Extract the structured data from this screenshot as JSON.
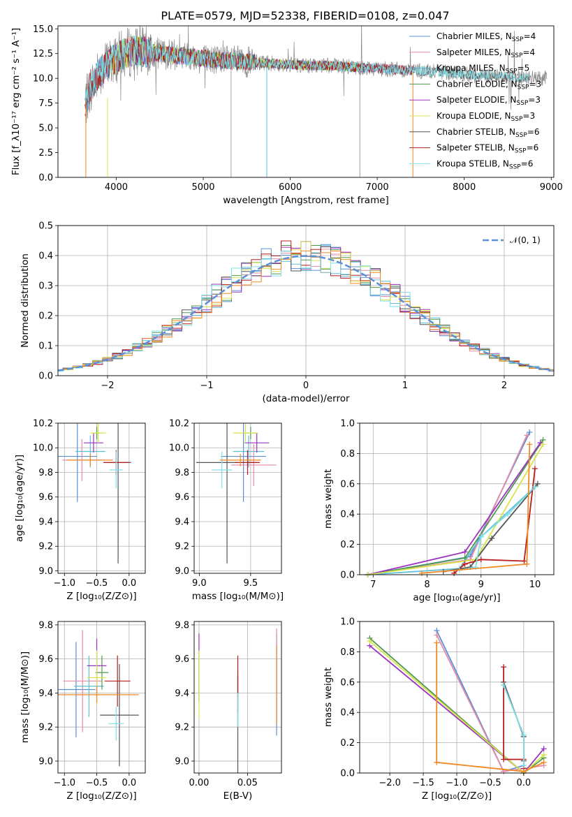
{
  "figure_title": "PLATE=0579, MJD=52338, FIBERID=0108, z=0.047",
  "colors": {
    "Chabrier MILES": "#5b8fd6",
    "Salpeter MILES": "#e58ba8",
    "Kroupa MILES": "#5bbdd8",
    "Chabrier ELODIE": "#4f9a4f",
    "Salpeter ELODIE": "#9b32c0",
    "Kroupa ELODIE": "#d8e34a",
    "Chabrier STELIB": "#555555",
    "Salpeter STELIB": "#b81c1c",
    "Kroupa STELIB": "#7fe0e8",
    "orange": "#f08a24",
    "normal_curve": "#5b8fd6"
  },
  "chart_data": [
    {
      "type": "line",
      "panel": "spectrum",
      "xlabel": "wavelength [Angstrom, rest frame]",
      "ylabel": "Flux [f_λ10⁻¹⁷ erg cm⁻² s⁻¹ A⁻¹]",
      "xlim": [
        3330,
        9030
      ],
      "ylim": [
        0,
        15.3
      ],
      "xticks": [
        "4000",
        "5000",
        "6000",
        "7000",
        "8000",
        "9000"
      ],
      "yticks": [
        "0.0",
        "2.5",
        "5.0",
        "7.5",
        "10.0",
        "12.5",
        "15.0"
      ],
      "legend": [
        "Chabrier MILES, Nₛₛₚ=4",
        "Salpeter MILES, Nₛₛₚ=4",
        "Kroupa MILES, Nₛₛₚ=5",
        "Chabrier ELODIE, Nₛₛₚ=3",
        "Salpeter ELODIE, Nₛₛₚ=3",
        "Kroupa ELODIE, Nₛₛₚ=3",
        "Chabrier STELIB, Nₛₛₚ=6",
        "Salpeter STELIB, Nₛₛₚ=6",
        "Kroupa STELIB, Nₛₛₚ=6"
      ],
      "legend_display": [
        {
          "name": "Chabrier MILES",
          "n": "4"
        },
        {
          "name": "Salpeter MILES",
          "n": "4"
        },
        {
          "name": "Kroupa MILES",
          "n": "5"
        },
        {
          "name": "Chabrier ELODIE",
          "n": "3"
        },
        {
          "name": "Salpeter ELODIE",
          "n": "3"
        },
        {
          "name": "Kroupa ELODIE",
          "n": "3"
        },
        {
          "name": "Chabrier STELIB",
          "n": "6"
        },
        {
          "name": "Salpeter STELIB",
          "n": "6"
        },
        {
          "name": "Kroupa STELIB",
          "n": "6"
        }
      ],
      "legend_placement": "upper-right",
      "grid": false,
      "continuum_x": [
        3650,
        3700,
        3800,
        3900,
        4000,
        4100,
        4200,
        4300,
        4400,
        4600,
        4800,
        5000,
        5200,
        5400,
        5600,
        5800,
        6000,
        6200,
        6400,
        6600,
        6800,
        7000,
        7200,
        7400,
        7600,
        7800,
        8000,
        8200,
        8400,
        8600,
        8800
      ],
      "continuum_y": [
        7.5,
        9.0,
        10.5,
        11.5,
        12.0,
        12.5,
        12.8,
        12.7,
        12.6,
        12.4,
        12.2,
        12.0,
        11.8,
        11.7,
        11.6,
        11.5,
        11.4,
        11.3,
        11.3,
        11.2,
        11.1,
        11.0,
        10.9,
        10.8,
        10.7,
        10.6,
        10.4,
        10.3,
        10.2,
        10.1,
        10.0
      ]
    },
    {
      "type": "bar",
      "panel": "residual histogram",
      "xlabel": "(data-model)/error",
      "ylabel": "Normed distribution",
      "xlim": [
        -2.5,
        2.5
      ],
      "ylim": [
        0,
        0.5
      ],
      "xticks": [
        "−2",
        "−1",
        "0",
        "1",
        "2"
      ],
      "yticks": [
        "0.0",
        "0.1",
        "0.2",
        "0.3",
        "0.4",
        "0.5"
      ],
      "legend": [
        "𝒩(0, 1)"
      ],
      "legend_display": [
        {
          "name": "𝒩(0, 1)",
          "n": ""
        }
      ],
      "legend_placement": "upper-right",
      "grid": true,
      "bin_width": 0.1,
      "note": "9 step histograms approximately following N(0,1)"
    },
    {
      "type": "scatter",
      "panel": "age vs Z",
      "xlabel": "Z [log₁₀(Z/Z⊙)]",
      "ylabel": "age  [log₁₀(age/yr)]",
      "xlim": [
        -1.1,
        0.25
      ],
      "ylim": [
        8.98,
        10.2
      ],
      "xticks": [
        "−1.0",
        "−0.5",
        "0.0"
      ],
      "yticks": [
        "9.0",
        "9.2",
        "9.4",
        "9.6",
        "9.8",
        "10.0",
        "10.2"
      ],
      "grid": true,
      "points": [
        {
          "x": -0.8,
          "xerr": 0.3,
          "y": 9.93,
          "yerr": 0.37,
          "c": "Chabrier MILES"
        },
        {
          "x": -0.73,
          "xerr": 0.3,
          "y": 9.9,
          "yerr": 0.17,
          "c": "Salpeter MILES"
        },
        {
          "x": -0.6,
          "xerr": 0.23,
          "y": 9.97,
          "yerr": 0.13,
          "c": "Kroupa MILES"
        },
        {
          "x": -0.5,
          "xerr": 0.07,
          "y": 10.12,
          "yerr": 0.05,
          "c": "Chabrier ELODIE"
        },
        {
          "x": -0.55,
          "xerr": 0.15,
          "y": 10.04,
          "yerr": 0.08,
          "c": "Salpeter ELODIE"
        },
        {
          "x": -0.48,
          "xerr": 0.12,
          "y": 10.12,
          "yerr": 0.08,
          "c": "Kroupa ELODIE"
        },
        {
          "x": -0.17,
          "xerr": 0.2,
          "y": 9.88,
          "yerr": 0.82,
          "c": "Chabrier STELIB"
        },
        {
          "x": -0.2,
          "xerr": 0.2,
          "y": 9.88,
          "yerr": 0.1,
          "c": "Salpeter STELIB"
        },
        {
          "x": -0.2,
          "xerr": 0.1,
          "y": 9.82,
          "yerr": 0.15,
          "c": "Kroupa STELIB"
        },
        {
          "x": -0.6,
          "xerr": 0.35,
          "y": 9.9,
          "yerr": 0.05,
          "c": "orange"
        }
      ]
    },
    {
      "type": "scatter",
      "panel": "age vs mass",
      "xlabel": "mass [log₁₀(M/M⊙)]",
      "ylabel": "",
      "xlim": [
        8.95,
        9.8
      ],
      "ylim": [
        8.98,
        10.2
      ],
      "xticks": [
        "9.0",
        "9.5"
      ],
      "yticks": [
        "9.0",
        "9.2",
        "9.4",
        "9.6",
        "9.8",
        "10.0",
        "10.2"
      ],
      "grid": true,
      "points": [
        {
          "x": 9.43,
          "xerr": 0.22,
          "y": 9.93,
          "yerr": 0.37,
          "c": "Chabrier MILES"
        },
        {
          "x": 9.53,
          "xerr": 0.22,
          "y": 9.86,
          "yerr": 0.17,
          "c": "Salpeter MILES"
        },
        {
          "x": 9.48,
          "xerr": 0.15,
          "y": 9.97,
          "yerr": 0.13,
          "c": "Kroupa MILES"
        },
        {
          "x": 9.5,
          "xerr": 0.07,
          "y": 10.12,
          "yerr": 0.05,
          "c": "Chabrier ELODIE"
        },
        {
          "x": 9.56,
          "xerr": 0.12,
          "y": 10.04,
          "yerr": 0.08,
          "c": "Salpeter ELODIE"
        },
        {
          "x": 9.45,
          "xerr": 0.12,
          "y": 10.12,
          "yerr": 0.08,
          "c": "Kroupa ELODIE"
        },
        {
          "x": 9.27,
          "xerr": 0.3,
          "y": 9.88,
          "yerr": 0.82,
          "c": "Chabrier STELIB"
        },
        {
          "x": 9.47,
          "xerr": 0.12,
          "y": 9.88,
          "yerr": 0.1,
          "c": "Salpeter STELIB"
        },
        {
          "x": 9.22,
          "xerr": 0.1,
          "y": 9.82,
          "yerr": 0.15,
          "c": "Kroupa STELIB"
        },
        {
          "x": 9.4,
          "xerr": 0.2,
          "y": 9.9,
          "yerr": 0.05,
          "c": "orange"
        }
      ]
    },
    {
      "type": "line",
      "panel": "mass weight vs age",
      "xlabel": "age  [log₁₀(age/yr)]",
      "ylabel": "mass weight",
      "xlim": [
        6.75,
        10.35
      ],
      "ylim": [
        0,
        1.0
      ],
      "xticks": [
        "7",
        "8",
        "9",
        "10"
      ],
      "yticks": [
        "0.0",
        "0.2",
        "0.4",
        "0.6",
        "0.8",
        "1.0"
      ],
      "grid": true,
      "series": [
        {
          "c": "Chabrier MILES",
          "x": [
            6.9,
            8.8,
            9.9
          ],
          "y": [
            0.0,
            0.12,
            0.94
          ]
        },
        {
          "c": "Salpeter MILES",
          "x": [
            6.9,
            8.8,
            9.85
          ],
          "y": [
            0.0,
            0.1,
            0.92
          ]
        },
        {
          "c": "Kroupa MILES",
          "x": [
            6.9,
            8.6,
            9.0,
            10.0
          ],
          "y": [
            0.0,
            0.04,
            0.25,
            0.58
          ]
        },
        {
          "c": "Chabrier ELODIE",
          "x": [
            6.9,
            8.7,
            10.15
          ],
          "y": [
            0.0,
            0.11,
            0.89
          ]
        },
        {
          "c": "Salpeter ELODIE",
          "x": [
            6.9,
            8.7,
            10.1
          ],
          "y": [
            0.0,
            0.15,
            0.87
          ]
        },
        {
          "c": "Kroupa ELODIE",
          "x": [
            6.9,
            8.9,
            10.15
          ],
          "y": [
            0.0,
            0.1,
            0.86
          ]
        },
        {
          "c": "Chabrier STELIB",
          "x": [
            8.3,
            8.8,
            9.2,
            10.05
          ],
          "y": [
            0.02,
            0.05,
            0.24,
            0.6
          ]
        },
        {
          "c": "Salpeter STELIB",
          "x": [
            8.5,
            8.7,
            9.0,
            9.8,
            10.0
          ],
          "y": [
            0.01,
            0.07,
            0.1,
            0.09,
            0.7
          ]
        },
        {
          "c": "Kroupa STELIB",
          "x": [
            8.6,
            8.9,
            9.0,
            9.5,
            10.0
          ],
          "y": [
            0.03,
            0.05,
            0.25,
            0.4,
            0.58
          ]
        },
        {
          "c": "orange",
          "x": [
            7.9,
            9.85,
            9.9
          ],
          "y": [
            0.01,
            0.07,
            0.86
          ]
        }
      ]
    },
    {
      "type": "scatter",
      "panel": "mass vs Z",
      "xlabel": "Z [log₁₀(Z/Z⊙)]",
      "ylabel": "mass [log₁₀(M/M⊙)]",
      "xlim": [
        -1.1,
        0.25
      ],
      "ylim": [
        8.93,
        9.82
      ],
      "xticks": [
        "−1.0",
        "−0.5",
        "0.0"
      ],
      "yticks": [
        "9.0",
        "9.2",
        "9.4",
        "9.6",
        "9.8"
      ],
      "grid": true,
      "points": [
        {
          "x": -0.82,
          "xerr": 0.3,
          "y": 9.42,
          "yerr": 0.28,
          "c": "Chabrier MILES"
        },
        {
          "x": -0.72,
          "xerr": 0.3,
          "y": 9.47,
          "yerr": 0.3,
          "c": "Salpeter MILES"
        },
        {
          "x": -0.62,
          "xerr": 0.23,
          "y": 9.44,
          "yerr": 0.18,
          "c": "Kroupa MILES"
        },
        {
          "x": -0.42,
          "xerr": 0.1,
          "y": 9.52,
          "yerr": 0.1,
          "c": "Chabrier ELODIE"
        },
        {
          "x": -0.5,
          "xerr": 0.15,
          "y": 9.56,
          "yerr": 0.16,
          "c": "Salpeter ELODIE"
        },
        {
          "x": -0.5,
          "xerr": 0.15,
          "y": 9.49,
          "yerr": 0.16,
          "c": "Kroupa ELODIE"
        },
        {
          "x": -0.15,
          "xerr": 0.3,
          "y": 9.27,
          "yerr": 0.3,
          "c": "Chabrier STELIB"
        },
        {
          "x": -0.18,
          "xerr": 0.2,
          "y": 9.47,
          "yerr": 0.15,
          "c": "Salpeter STELIB"
        },
        {
          "x": -0.2,
          "xerr": 0.12,
          "y": 9.22,
          "yerr": 0.1,
          "c": "Kroupa STELIB"
        },
        {
          "x": -0.5,
          "xerr": 0.65,
          "y": 9.39,
          "yerr": 0.05,
          "c": "orange"
        }
      ]
    },
    {
      "type": "scatter",
      "panel": "mass vs E(B-V)",
      "xlabel": "E(B-V)",
      "ylabel": "",
      "xlim": [
        -0.005,
        0.085
      ],
      "ylim": [
        8.93,
        9.82
      ],
      "xticks": [
        "0.00",
        "0.05"
      ],
      "yticks": [
        "9.0",
        "9.2",
        "9.4",
        "9.6",
        "9.8"
      ],
      "grid": true,
      "points": [
        {
          "x": 0.08,
          "xerr": 0,
          "y": 9.45,
          "yerr": 0.3,
          "c": "Chabrier MILES"
        },
        {
          "x": 0.08,
          "xerr": 0,
          "y": 9.5,
          "yerr": 0.28,
          "c": "Salpeter MILES"
        },
        {
          "x": 0.04,
          "xerr": 0,
          "y": 9.35,
          "yerr": 0.15,
          "c": "Kroupa MILES"
        },
        {
          "x": 0.04,
          "xerr": 0,
          "y": 9.45,
          "yerr": 0.08,
          "c": "Chabrier ELODIE"
        },
        {
          "x": 0.0,
          "xerr": 0,
          "y": 9.55,
          "yerr": 0.2,
          "c": "Salpeter ELODIE"
        },
        {
          "x": 0.0,
          "xerr": 0,
          "y": 9.45,
          "yerr": 0.2,
          "c": "Kroupa ELODIE"
        },
        {
          "x": 0.04,
          "xerr": 0,
          "y": 9.2,
          "yerr": 0.3,
          "c": "Chabrier STELIB"
        },
        {
          "x": 0.04,
          "xerr": 0,
          "y": 9.45,
          "yerr": 0.17,
          "c": "Salpeter STELIB"
        },
        {
          "x": 0.04,
          "xerr": 0,
          "y": 9.3,
          "yerr": 0.1,
          "c": "Kroupa STELIB"
        },
        {
          "x": 0.08,
          "xerr": 0,
          "y": 9.45,
          "yerr": 0.23,
          "c": "orange"
        }
      ]
    },
    {
      "type": "line",
      "panel": "mass weight vs Z",
      "xlabel": "Z [log₁₀(Z/Z⊙)]",
      "ylabel": "mass weight",
      "xlim": [
        -2.45,
        0.45
      ],
      "ylim": [
        0,
        1.0
      ],
      "xticks": [
        "−2.0",
        "−1.5",
        "−1.0",
        "−0.5",
        "0.0"
      ],
      "yticks": [
        "0.0",
        "0.2",
        "0.4",
        "0.6",
        "0.8",
        "1.0"
      ],
      "grid": true,
      "series": [
        {
          "c": "Chabrier MILES",
          "x": [
            -1.3,
            -0.3,
            0.0
          ],
          "y": [
            0.94,
            0.01,
            0.05
          ]
        },
        {
          "c": "Salpeter MILES",
          "x": [
            -1.3,
            -0.3,
            0.0,
            0.3
          ],
          "y": [
            0.91,
            0.01,
            0.03,
            0.05
          ]
        },
        {
          "c": "Kroupa MILES",
          "x": [
            -0.3,
            0.0,
            0.0
          ],
          "y": [
            0.58,
            0.25,
            0.0
          ]
        },
        {
          "c": "Chabrier ELODIE",
          "x": [
            -2.3,
            0.0,
            0.3
          ],
          "y": [
            0.89,
            0.0,
            0.1
          ]
        },
        {
          "c": "Salpeter ELODIE",
          "x": [
            -2.3,
            0.0,
            0.3
          ],
          "y": [
            0.84,
            0.0,
            0.16
          ]
        },
        {
          "c": "Kroupa ELODIE",
          "x": [
            -2.3,
            0.0,
            0.3
          ],
          "y": [
            0.87,
            0.0,
            0.12
          ]
        },
        {
          "c": "Chabrier STELIB",
          "x": [
            -0.3,
            0.0,
            0.0
          ],
          "y": [
            0.6,
            0.24,
            0.08
          ]
        },
        {
          "c": "Salpeter STELIB",
          "x": [
            -0.3,
            -0.3,
            0.0,
            0.0
          ],
          "y": [
            0.7,
            0.09,
            0.09,
            0.03
          ]
        },
        {
          "c": "Kroupa STELIB",
          "x": [
            -0.3,
            0.0,
            0.0
          ],
          "y": [
            0.58,
            0.25,
            0.05
          ]
        },
        {
          "c": "orange",
          "x": [
            -1.3,
            -1.3,
            0.0,
            0.3
          ],
          "y": [
            0.86,
            0.07,
            0.01,
            0.07
          ]
        }
      ]
    }
  ]
}
